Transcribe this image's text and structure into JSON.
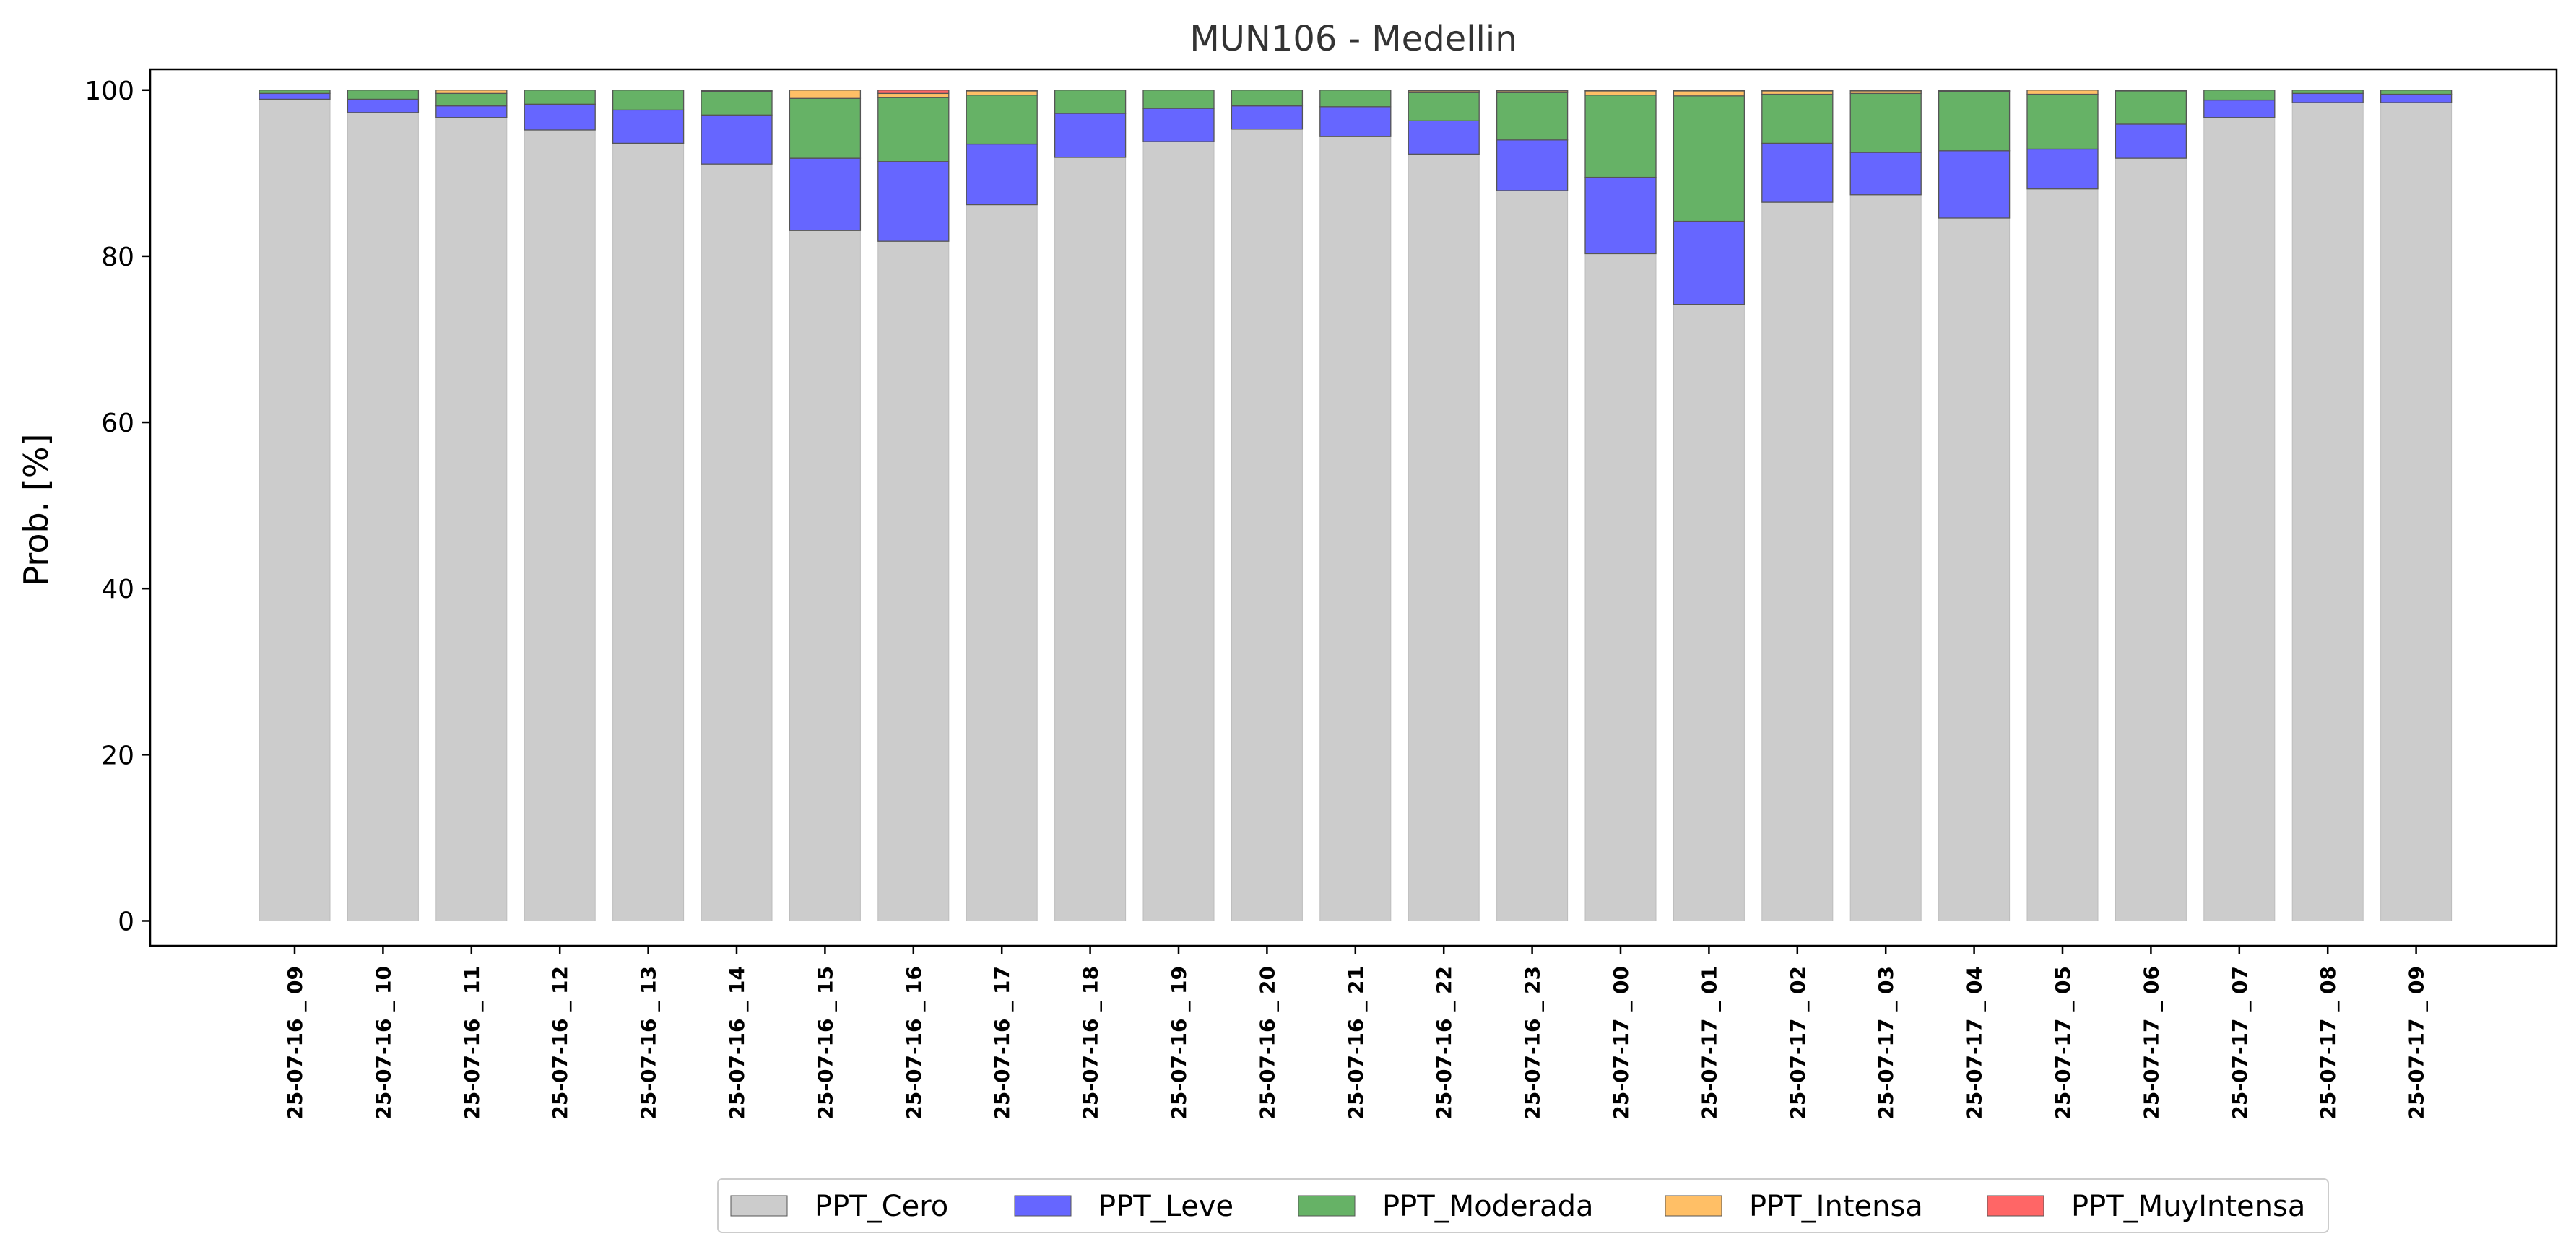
{
  "chart_data": {
    "type": "bar",
    "stacked": true,
    "title": "MUN106 - Medellin",
    "xlabel": "",
    "ylabel": "Prob. [%]",
    "ylim": [
      -3,
      102.5
    ],
    "yticks": [
      0,
      20,
      40,
      60,
      80,
      100
    ],
    "legend_position": "bottom-center",
    "categories": [
      "25-07-16 _ 09",
      "25-07-16 _ 10",
      "25-07-16 _ 11",
      "25-07-16 _ 12",
      "25-07-16 _ 13",
      "25-07-16 _ 14",
      "25-07-16 _ 15",
      "25-07-16 _ 16",
      "25-07-16 _ 17",
      "25-07-16 _ 18",
      "25-07-16 _ 19",
      "25-07-16 _ 20",
      "25-07-16 _ 21",
      "25-07-16 _ 22",
      "25-07-16 _ 23",
      "25-07-17 _ 00",
      "25-07-17 _ 01",
      "25-07-17 _ 02",
      "25-07-17 _ 03",
      "25-07-17 _ 04",
      "25-07-17 _ 05",
      "25-07-17 _ 06",
      "25-07-17 _ 07",
      "25-07-17 _ 08",
      "25-07-17 _ 09"
    ],
    "series": [
      {
        "name": "PPT_Cero",
        "color": "#cccccc",
        "values": [
          98.9,
          97.3,
          96.7,
          95.2,
          93.6,
          91.1,
          83.1,
          81.8,
          86.2,
          91.9,
          93.8,
          95.3,
          94.4,
          92.3,
          87.9,
          80.3,
          74.2,
          86.5,
          87.4,
          84.6,
          88.1,
          91.8,
          96.7,
          98.5,
          98.5
        ]
      },
      {
        "name": "PPT_Leve",
        "color": "#6666ff",
        "values": [
          0.7,
          1.6,
          1.4,
          3.1,
          4.0,
          5.9,
          8.7,
          9.6,
          7.3,
          5.3,
          4.0,
          2.8,
          3.6,
          4.0,
          6.1,
          9.2,
          10.0,
          7.1,
          5.1,
          8.1,
          4.8,
          4.1,
          2.1,
          1.1,
          1.0
        ]
      },
      {
        "name": "PPT_Moderada",
        "color": "#66b266",
        "values": [
          0.4,
          1.1,
          1.5,
          1.7,
          2.4,
          2.8,
          7.2,
          7.7,
          5.9,
          2.8,
          2.2,
          1.9,
          2.0,
          3.4,
          5.7,
          9.9,
          15.1,
          5.9,
          7.1,
          7.1,
          6.6,
          4.0,
          1.2,
          0.4,
          0.5
        ]
      },
      {
        "name": "PPT_Intensa",
        "color": "#ffbf66",
        "values": [
          0.0,
          0.0,
          0.4,
          0.0,
          0.0,
          0.1,
          1.0,
          0.5,
          0.5,
          0.0,
          0.0,
          0.0,
          0.0,
          0.2,
          0.2,
          0.5,
          0.6,
          0.4,
          0.3,
          0.1,
          0.5,
          0.1,
          0.0,
          0.0,
          0.0
        ]
      },
      {
        "name": "PPT_MuyIntensa",
        "color": "#ff6666",
        "values": [
          0.0,
          0.0,
          0.0,
          0.0,
          0.0,
          0.1,
          0.0,
          0.4,
          0.1,
          0.0,
          0.0,
          0.0,
          0.0,
          0.1,
          0.1,
          0.1,
          0.1,
          0.1,
          0.1,
          0.1,
          0.0,
          0.0,
          0.0,
          0.0,
          0.0
        ]
      }
    ]
  }
}
